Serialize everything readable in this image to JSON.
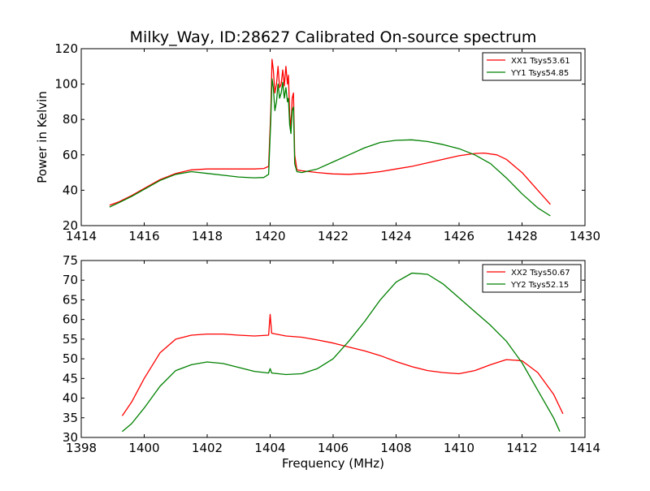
{
  "figure": {
    "title": "Milky_Way, ID:28627 Calibrated On-source spectrum",
    "ylabel": "Power in Kelvin",
    "xlabel": "Frequency (MHz)"
  },
  "chart_data": [
    {
      "type": "line",
      "xlim": [
        1414,
        1430
      ],
      "ylim": [
        20,
        120
      ],
      "xticks": [
        "1414",
        "1416",
        "1418",
        "1420",
        "1422",
        "1424",
        "1426",
        "1428",
        "1430"
      ],
      "yticks": [
        "20",
        "40",
        "60",
        "80",
        "100",
        "120"
      ],
      "legend_position": "top-right",
      "grid": false,
      "series": [
        {
          "name": "XX1 Tsys53.61",
          "color": "#ff0000",
          "points": [
            [
              1414.9,
              31.5
            ],
            [
              1415.2,
              33.5
            ],
            [
              1415.6,
              37
            ],
            [
              1416,
              41
            ],
            [
              1416.5,
              46
            ],
            [
              1417,
              49.5
            ],
            [
              1417.5,
              51.5
            ],
            [
              1418,
              52
            ],
            [
              1418.5,
              52
            ],
            [
              1419,
              52
            ],
            [
              1419.5,
              52
            ],
            [
              1419.8,
              52.3
            ],
            [
              1419.95,
              53.5
            ],
            [
              1420.02,
              85
            ],
            [
              1420.06,
              114
            ],
            [
              1420.1,
              108
            ],
            [
              1420.15,
              95
            ],
            [
              1420.2,
              100
            ],
            [
              1420.25,
              110
            ],
            [
              1420.3,
              98
            ],
            [
              1420.35,
              100
            ],
            [
              1420.4,
              108
            ],
            [
              1420.45,
              99
            ],
            [
              1420.5,
              110
            ],
            [
              1420.55,
              100
            ],
            [
              1420.58,
              105
            ],
            [
              1420.62,
              83
            ],
            [
              1420.66,
              75
            ],
            [
              1420.7,
              92
            ],
            [
              1420.74,
              95
            ],
            [
              1420.78,
              60
            ],
            [
              1420.85,
              51.5
            ],
            [
              1421,
              51
            ],
            [
              1421.5,
              50
            ],
            [
              1422,
              49.2
            ],
            [
              1422.5,
              49
            ],
            [
              1423,
              49.5
            ],
            [
              1423.5,
              50.5
            ],
            [
              1424,
              52
            ],
            [
              1424.5,
              53.5
            ],
            [
              1425,
              55.5
            ],
            [
              1425.5,
              57.5
            ],
            [
              1426,
              59.5
            ],
            [
              1426.5,
              60.8
            ],
            [
              1426.8,
              61
            ],
            [
              1427.2,
              60
            ],
            [
              1427.5,
              57.5
            ],
            [
              1428,
              50
            ],
            [
              1428.5,
              40
            ],
            [
              1428.9,
              32
            ]
          ]
        },
        {
          "name": "YY1 Tsys54.85",
          "color": "#008000",
          "points": [
            [
              1414.9,
              30.5
            ],
            [
              1415.2,
              33
            ],
            [
              1415.6,
              36.5
            ],
            [
              1416,
              40.5
            ],
            [
              1416.5,
              45.5
            ],
            [
              1417,
              49
            ],
            [
              1417.5,
              50.5
            ],
            [
              1418,
              49.5
            ],
            [
              1418.5,
              48.5
            ],
            [
              1419,
              47.5
            ],
            [
              1419.5,
              47
            ],
            [
              1419.8,
              47.2
            ],
            [
              1419.95,
              49
            ],
            [
              1420.02,
              80
            ],
            [
              1420.06,
              103
            ],
            [
              1420.1,
              98
            ],
            [
              1420.15,
              85
            ],
            [
              1420.2,
              90
            ],
            [
              1420.25,
              100
            ],
            [
              1420.3,
              92
            ],
            [
              1420.35,
              95
            ],
            [
              1420.4,
              101
            ],
            [
              1420.45,
              92
            ],
            [
              1420.5,
              98
            ],
            [
              1420.55,
              90
            ],
            [
              1420.58,
              92
            ],
            [
              1420.62,
              77
            ],
            [
              1420.66,
              72
            ],
            [
              1420.7,
              85
            ],
            [
              1420.74,
              87
            ],
            [
              1420.78,
              55
            ],
            [
              1420.85,
              50.5
            ],
            [
              1421,
              50
            ],
            [
              1421.5,
              52
            ],
            [
              1422,
              56
            ],
            [
              1422.5,
              60
            ],
            [
              1423,
              64
            ],
            [
              1423.5,
              67
            ],
            [
              1424,
              68.2
            ],
            [
              1424.5,
              68.5
            ],
            [
              1425,
              67.5
            ],
            [
              1425.5,
              65.8
            ],
            [
              1426,
              63.5
            ],
            [
              1426.5,
              60
            ],
            [
              1427,
              55
            ],
            [
              1427.5,
              47
            ],
            [
              1428,
              38
            ],
            [
              1428.5,
              30
            ],
            [
              1428.9,
              25.5
            ]
          ]
        }
      ]
    },
    {
      "type": "line",
      "xlim": [
        1398,
        1414
      ],
      "ylim": [
        30,
        75
      ],
      "xticks": [
        "1398",
        "1400",
        "1402",
        "1404",
        "1406",
        "1408",
        "1410",
        "1412",
        "1414"
      ],
      "yticks": [
        "30",
        "35",
        "40",
        "45",
        "50",
        "55",
        "60",
        "65",
        "70",
        "75"
      ],
      "xlabel": "Frequency (MHz)",
      "legend_position": "top-right",
      "grid": false,
      "series": [
        {
          "name": "XX2 Tsys50.67",
          "color": "#ff0000",
          "points": [
            [
              1399.3,
              35.5
            ],
            [
              1399.6,
              39
            ],
            [
              1400,
              45
            ],
            [
              1400.5,
              51.5
            ],
            [
              1401,
              55
            ],
            [
              1401.5,
              56
            ],
            [
              1402,
              56.3
            ],
            [
              1402.5,
              56.3
            ],
            [
              1403,
              56
            ],
            [
              1403.5,
              55.8
            ],
            [
              1403.95,
              56
            ],
            [
              1404,
              61.3
            ],
            [
              1404.05,
              56.5
            ],
            [
              1404.5,
              55.8
            ],
            [
              1405,
              55.5
            ],
            [
              1405.5,
              54.8
            ],
            [
              1406,
              54
            ],
            [
              1406.5,
              53
            ],
            [
              1407,
              52
            ],
            [
              1407.5,
              50.8
            ],
            [
              1408,
              49.3
            ],
            [
              1408.5,
              48
            ],
            [
              1409,
              47
            ],
            [
              1409.5,
              46.5
            ],
            [
              1410,
              46.2
            ],
            [
              1410.5,
              47
            ],
            [
              1411,
              48.5
            ],
            [
              1411.5,
              49.8
            ],
            [
              1412,
              49.5
            ],
            [
              1412.5,
              46.5
            ],
            [
              1413,
              41
            ],
            [
              1413.3,
              36
            ]
          ]
        },
        {
          "name": "YY2 Tsys52.15",
          "color": "#008000",
          "points": [
            [
              1399.3,
              31.5
            ],
            [
              1399.6,
              33.5
            ],
            [
              1400,
              37.5
            ],
            [
              1400.5,
              43
            ],
            [
              1401,
              47
            ],
            [
              1401.5,
              48.5
            ],
            [
              1402,
              49.2
            ],
            [
              1402.5,
              48.8
            ],
            [
              1403,
              47.8
            ],
            [
              1403.5,
              46.8
            ],
            [
              1403.95,
              46.4
            ],
            [
              1404,
              47.5
            ],
            [
              1404.05,
              46.4
            ],
            [
              1404.5,
              46
            ],
            [
              1405,
              46.2
            ],
            [
              1405.5,
              47.5
            ],
            [
              1406,
              50
            ],
            [
              1406.5,
              54.5
            ],
            [
              1407,
              59.5
            ],
            [
              1407.5,
              65
            ],
            [
              1408,
              69.5
            ],
            [
              1408.5,
              71.8
            ],
            [
              1409,
              71.5
            ],
            [
              1409.5,
              69
            ],
            [
              1410,
              65.5
            ],
            [
              1410.5,
              62
            ],
            [
              1411,
              58.5
            ],
            [
              1411.5,
              54.5
            ],
            [
              1412,
              49
            ],
            [
              1412.5,
              42
            ],
            [
              1413,
              35
            ],
            [
              1413.2,
              31.5
            ]
          ]
        }
      ]
    }
  ]
}
